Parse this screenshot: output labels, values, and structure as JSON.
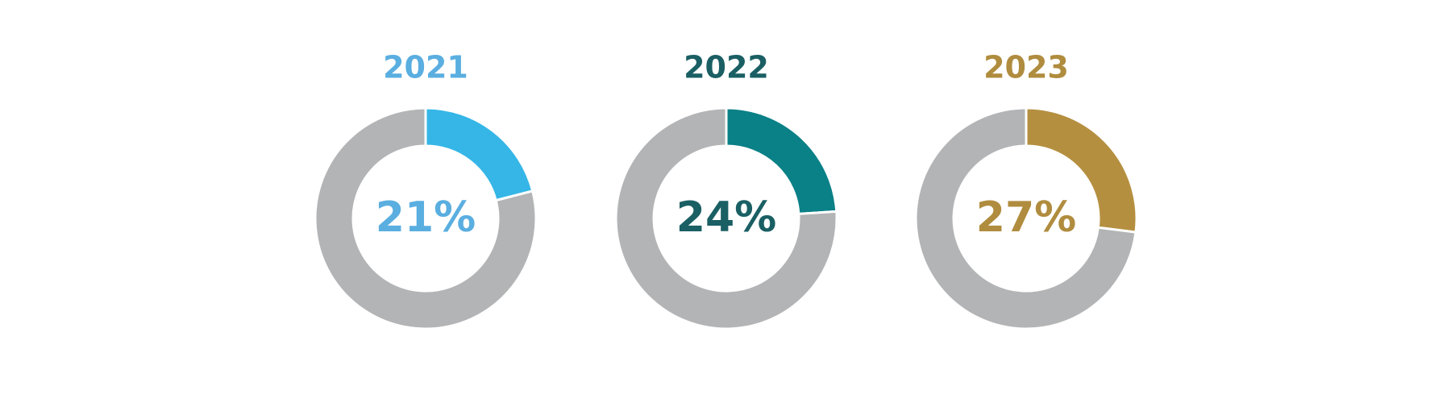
{
  "chart_data": [
    {
      "type": "donut",
      "title": "2021",
      "values": [
        21,
        79
      ],
      "value_labels": [
        "21%",
        null
      ],
      "colors": [
        "#35b6e7",
        "#b3b4b6"
      ],
      "text_color": "#5aaee0"
    },
    {
      "type": "donut",
      "title": "2022",
      "values": [
        24,
        76
      ],
      "value_labels": [
        "24%",
        null
      ],
      "colors": [
        "#0a8087",
        "#b3b4b6"
      ],
      "text_color": "#1a5f64"
    },
    {
      "type": "donut",
      "title": "2023",
      "values": [
        27,
        73
      ],
      "value_labels": [
        "27%",
        null
      ],
      "colors": [
        "#b58f40",
        "#b3b4b6"
      ],
      "text_color": "#b08c3e"
    }
  ]
}
